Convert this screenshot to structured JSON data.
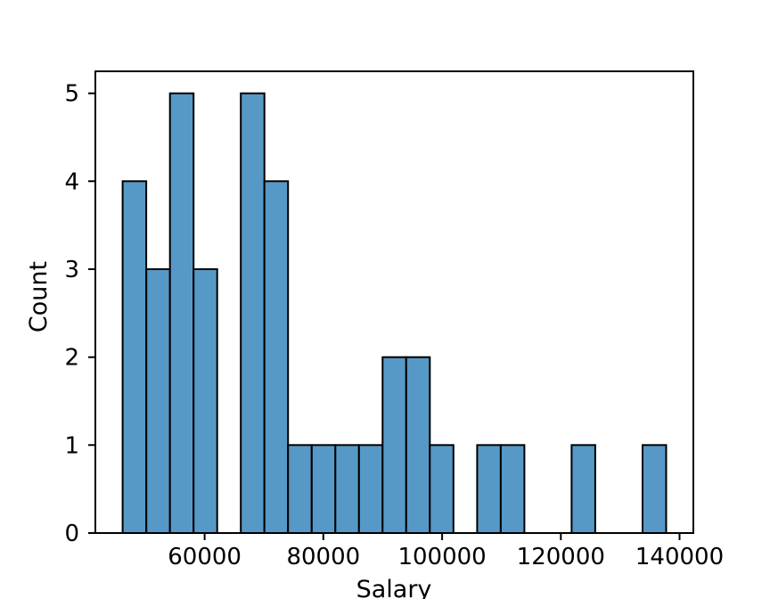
{
  "figure": {
    "background": "#ffffff"
  },
  "chart_data": {
    "type": "bar",
    "subtype": "histogram",
    "title": "",
    "xlabel": "Salary",
    "ylabel": "Count",
    "bin_edges": [
      46200,
      50180,
      54160,
      58140,
      62120,
      66100,
      70080,
      74060,
      78040,
      82020,
      86000,
      89980,
      93960,
      97940,
      101920,
      105900,
      109880,
      113860,
      117840,
      121820,
      125800,
      129780,
      133760,
      137740
    ],
    "counts": [
      4,
      3,
      5,
      3,
      0,
      5,
      4,
      1,
      1,
      1,
      1,
      2,
      2,
      1,
      0,
      1,
      1,
      0,
      0,
      1,
      0,
      0,
      1
    ],
    "xlim": [
      41600,
      142320
    ],
    "ylim": [
      0,
      5.25
    ],
    "xticks": [
      60000,
      80000,
      100000,
      120000,
      140000
    ],
    "yticks": [
      0,
      1,
      2,
      3,
      4,
      5
    ],
    "grid": false,
    "legend_position": "none",
    "bar_fill": "#5799C6",
    "bar_edge": "#000000",
    "axis_color": "#000000",
    "tick_label_color": "#000000"
  }
}
